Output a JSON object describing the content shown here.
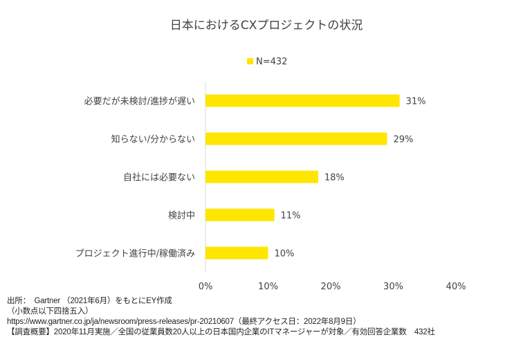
{
  "chart_data": {
    "type": "bar",
    "orientation": "horizontal",
    "title": "日本におけるCXプロジェクトの状況",
    "legend": {
      "label": "N=432",
      "placement": "top-center"
    },
    "categories": [
      "必要だが未検討/進捗が遅い",
      "知らない/分からない",
      "自社には必要ない",
      "検討中",
      "プロジェクト進行中/稼働済み"
    ],
    "values": [
      31,
      29,
      18,
      11,
      10
    ],
    "data_labels": [
      "31%",
      "29%",
      "18%",
      "11%",
      "10%"
    ],
    "xlim": [
      0,
      40
    ],
    "xticks": [
      0,
      10,
      20,
      30,
      40
    ],
    "xtick_labels": [
      "0%",
      "10%",
      "20%",
      "30%",
      "40%"
    ],
    "grid": false,
    "xlabel": "",
    "ylabel": "",
    "bar_color": "#FFE600"
  },
  "notes": [
    "出所：　Gartner （2021年6月）をもとにEY作成",
    "（小数点以下四捨五入）",
    "https://www.gartner.co.jp/ja/newsroom/press-releases/pr-20210607（最終アクセス日：2022年8月9日）",
    "【調査概要】2020年11月実施／全国の従業員数20人以上の日本国内企業のITマネージャーが対象／有効回答企業数　432社"
  ]
}
